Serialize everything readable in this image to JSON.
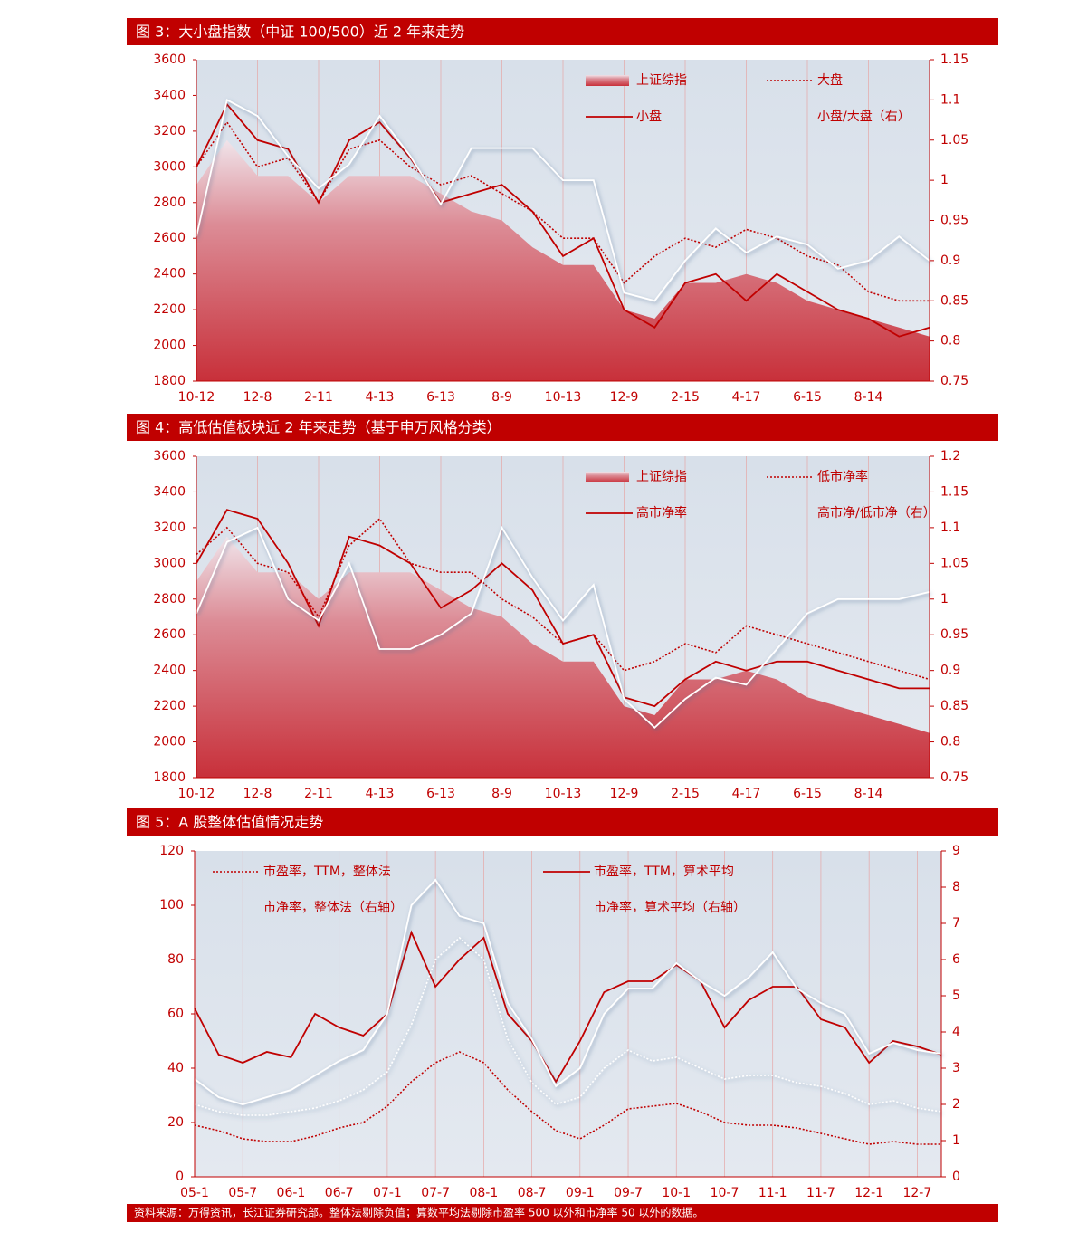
{
  "chart_data": [
    {
      "type": "line",
      "title": "图 3：大小盘指数（中证 100/500）近 2 年来走势",
      "categories": [
        "10-12",
        null,
        "12-8",
        null,
        "2-11",
        null,
        "4-13",
        null,
        "6-13",
        null,
        "8-9",
        null,
        "10-13",
        null,
        "12-9",
        null,
        "2-15",
        null,
        "4-17",
        null,
        "6-15",
        null,
        "8-14",
        null,
        null
      ],
      "series": [
        {
          "name": "上证综指",
          "style": "area",
          "color": "#c8303a",
          "values": [
            2900,
            3150,
            2950,
            2950,
            2800,
            2950,
            2950,
            2950,
            2850,
            2750,
            2700,
            2550,
            2450,
            2450,
            2200,
            2150,
            2350,
            2350,
            2400,
            2350,
            2250,
            2200,
            2150,
            2100,
            2050
          ]
        },
        {
          "name": "大盘",
          "style": "dotted",
          "color": "#c00000",
          "values": [
            3000,
            3250,
            3000,
            3050,
            2800,
            3100,
            3150,
            3000,
            2900,
            2950,
            2850,
            2750,
            2600,
            2600,
            2350,
            2500,
            2600,
            2550,
            2650,
            2600,
            2500,
            2450,
            2300,
            2250,
            2250
          ]
        },
        {
          "name": "小盘",
          "style": "solid",
          "color": "#c00000",
          "values": [
            3000,
            3350,
            3150,
            3100,
            2800,
            3150,
            3250,
            3050,
            2800,
            2850,
            2900,
            2750,
            2500,
            2600,
            2200,
            2100,
            2350,
            2400,
            2250,
            2400,
            2300,
            2200,
            2150,
            2050,
            2100
          ]
        },
        {
          "name": "小盘/大盘（右）",
          "style": "solid",
          "color": "#ffffff",
          "axis": "y2",
          "values": [
            0.93,
            1.1,
            1.08,
            1.03,
            0.99,
            1.02,
            1.08,
            1.03,
            0.97,
            1.04,
            1.04,
            1.04,
            1.0,
            1.0,
            0.86,
            0.85,
            0.9,
            0.94,
            0.91,
            0.93,
            0.92,
            0.89,
            0.9,
            0.93,
            0.9
          ]
        }
      ],
      "ylim": [
        1800,
        3600
      ],
      "yticks": [
        1800,
        2000,
        2200,
        2400,
        2600,
        2800,
        3000,
        3200,
        3400,
        3600
      ],
      "y2lim": [
        0.75,
        1.15
      ],
      "y2ticks": [
        0.75,
        0.8,
        0.85,
        0.9,
        0.95,
        1,
        1.05,
        1.1,
        1.15
      ],
      "grid": "x",
      "legend": "upper right"
    },
    {
      "type": "line",
      "title": "图 4：高低估值板块近 2 年来走势（基于申万风格分类）",
      "categories": [
        "10-12",
        null,
        "12-8",
        null,
        "2-11",
        null,
        "4-13",
        null,
        "6-13",
        null,
        "8-9",
        null,
        "10-13",
        null,
        "12-9",
        null,
        "2-15",
        null,
        "4-17",
        null,
        "6-15",
        null,
        "8-14",
        null,
        null
      ],
      "series": [
        {
          "name": "上证综指",
          "style": "area",
          "color": "#c8303a",
          "values": [
            2900,
            3150,
            2950,
            2950,
            2800,
            2950,
            2950,
            2950,
            2850,
            2750,
            2700,
            2550,
            2450,
            2450,
            2200,
            2150,
            2350,
            2350,
            2400,
            2350,
            2250,
            2200,
            2150,
            2100,
            2050
          ]
        },
        {
          "name": "低市净率",
          "style": "dotted",
          "color": "#c00000",
          "values": [
            3050,
            3200,
            3000,
            2950,
            2700,
            3100,
            3250,
            3000,
            2950,
            2950,
            2800,
            2700,
            2550,
            2600,
            2400,
            2450,
            2550,
            2500,
            2650,
            2600,
            2550,
            2500,
            2450,
            2400,
            2350
          ]
        },
        {
          "name": "高市净率",
          "style": "solid",
          "color": "#c00000",
          "values": [
            3000,
            3300,
            3250,
            3000,
            2650,
            3150,
            3100,
            3000,
            2750,
            2850,
            3000,
            2850,
            2550,
            2600,
            2250,
            2200,
            2350,
            2450,
            2400,
            2450,
            2450,
            2400,
            2350,
            2300,
            2300
          ]
        },
        {
          "name": "高市净/低市净（右）",
          "style": "solid",
          "color": "#ffffff",
          "axis": "y2",
          "values": [
            0.98,
            1.08,
            1.1,
            1.0,
            0.97,
            1.05,
            0.93,
            0.93,
            0.95,
            0.98,
            1.1,
            1.03,
            0.97,
            1.02,
            0.86,
            0.82,
            0.86,
            0.89,
            0.88,
            0.93,
            0.98,
            1.0,
            1.0,
            1.0,
            1.01
          ]
        }
      ],
      "ylim": [
        1800,
        3600
      ],
      "yticks": [
        1800,
        2000,
        2200,
        2400,
        2600,
        2800,
        3000,
        3200,
        3400,
        3600
      ],
      "y2lim": [
        0.75,
        1.2
      ],
      "y2ticks": [
        0.75,
        0.8,
        0.85,
        0.9,
        0.95,
        1,
        1.05,
        1.1,
        1.15,
        1.2
      ],
      "grid": "x",
      "legend": "upper right"
    },
    {
      "type": "line",
      "title": "图 5：A 股整体估值情况走势",
      "categories": [
        "05-1",
        null,
        "05-7",
        null,
        "06-1",
        null,
        "06-7",
        null,
        "07-1",
        null,
        "07-7",
        null,
        "08-1",
        null,
        "08-7",
        null,
        "09-1",
        null,
        "09-7",
        null,
        "10-1",
        null,
        "10-7",
        null,
        "11-1",
        null,
        "11-7",
        null,
        "12-1",
        null,
        "12-7",
        null
      ],
      "series": [
        {
          "name": "市盈率，TTM，整体法",
          "style": "dotted",
          "color": "#c00000",
          "values": [
            19,
            17,
            14,
            13,
            13,
            15,
            18,
            20,
            26,
            35,
            42,
            46,
            42,
            32,
            24,
            17,
            14,
            19,
            25,
            26,
            27,
            24,
            20,
            19,
            19,
            18,
            16,
            14,
            12,
            13,
            12,
            12
          ]
        },
        {
          "name": "市盈率，TTM，算术平均",
          "style": "solid",
          "color": "#c00000",
          "values": [
            62,
            45,
            42,
            46,
            44,
            60,
            55,
            52,
            60,
            90,
            70,
            80,
            88,
            60,
            50,
            35,
            50,
            68,
            72,
            72,
            78,
            72,
            55,
            65,
            70,
            70,
            58,
            55,
            42,
            50,
            48,
            45
          ]
        },
        {
          "name": "市净率，整体法（右轴）",
          "style": "dotted",
          "color": "#ffffff",
          "axis": "y2",
          "values": [
            2.0,
            1.8,
            1.7,
            1.7,
            1.8,
            1.9,
            2.1,
            2.4,
            2.9,
            4.2,
            6.0,
            6.6,
            6.0,
            3.8,
            2.6,
            2.0,
            2.2,
            3.0,
            3.5,
            3.2,
            3.3,
            3.0,
            2.7,
            2.8,
            2.8,
            2.6,
            2.5,
            2.3,
            2.0,
            2.1,
            1.9,
            1.8
          ]
        },
        {
          "name": "市净率，算术平均（右轴）",
          "style": "solid",
          "color": "#ffffff",
          "axis": "y2",
          "values": [
            2.7,
            2.2,
            2.0,
            2.2,
            2.4,
            2.8,
            3.2,
            3.5,
            4.5,
            7.5,
            8.2,
            7.2,
            7.0,
            4.8,
            3.8,
            2.5,
            3.0,
            4.5,
            5.2,
            5.2,
            5.9,
            5.4,
            5.0,
            5.5,
            6.2,
            5.2,
            4.8,
            4.5,
            3.4,
            3.7,
            3.5,
            3.4
          ]
        }
      ],
      "ylim": [
        0,
        120
      ],
      "yticks": [
        0,
        20,
        40,
        60,
        80,
        100,
        120
      ],
      "y2lim": [
        0,
        9
      ],
      "y2ticks": [
        0,
        1,
        2,
        3,
        4,
        5,
        6,
        7,
        8,
        9
      ],
      "grid": "x",
      "legend": "upper left"
    }
  ],
  "source": "资料来源：万得资讯，长江证券研究部。整体法剔除负值；算数平均法剔除市盈率 500 以外和市净率 50 以外的数据。"
}
